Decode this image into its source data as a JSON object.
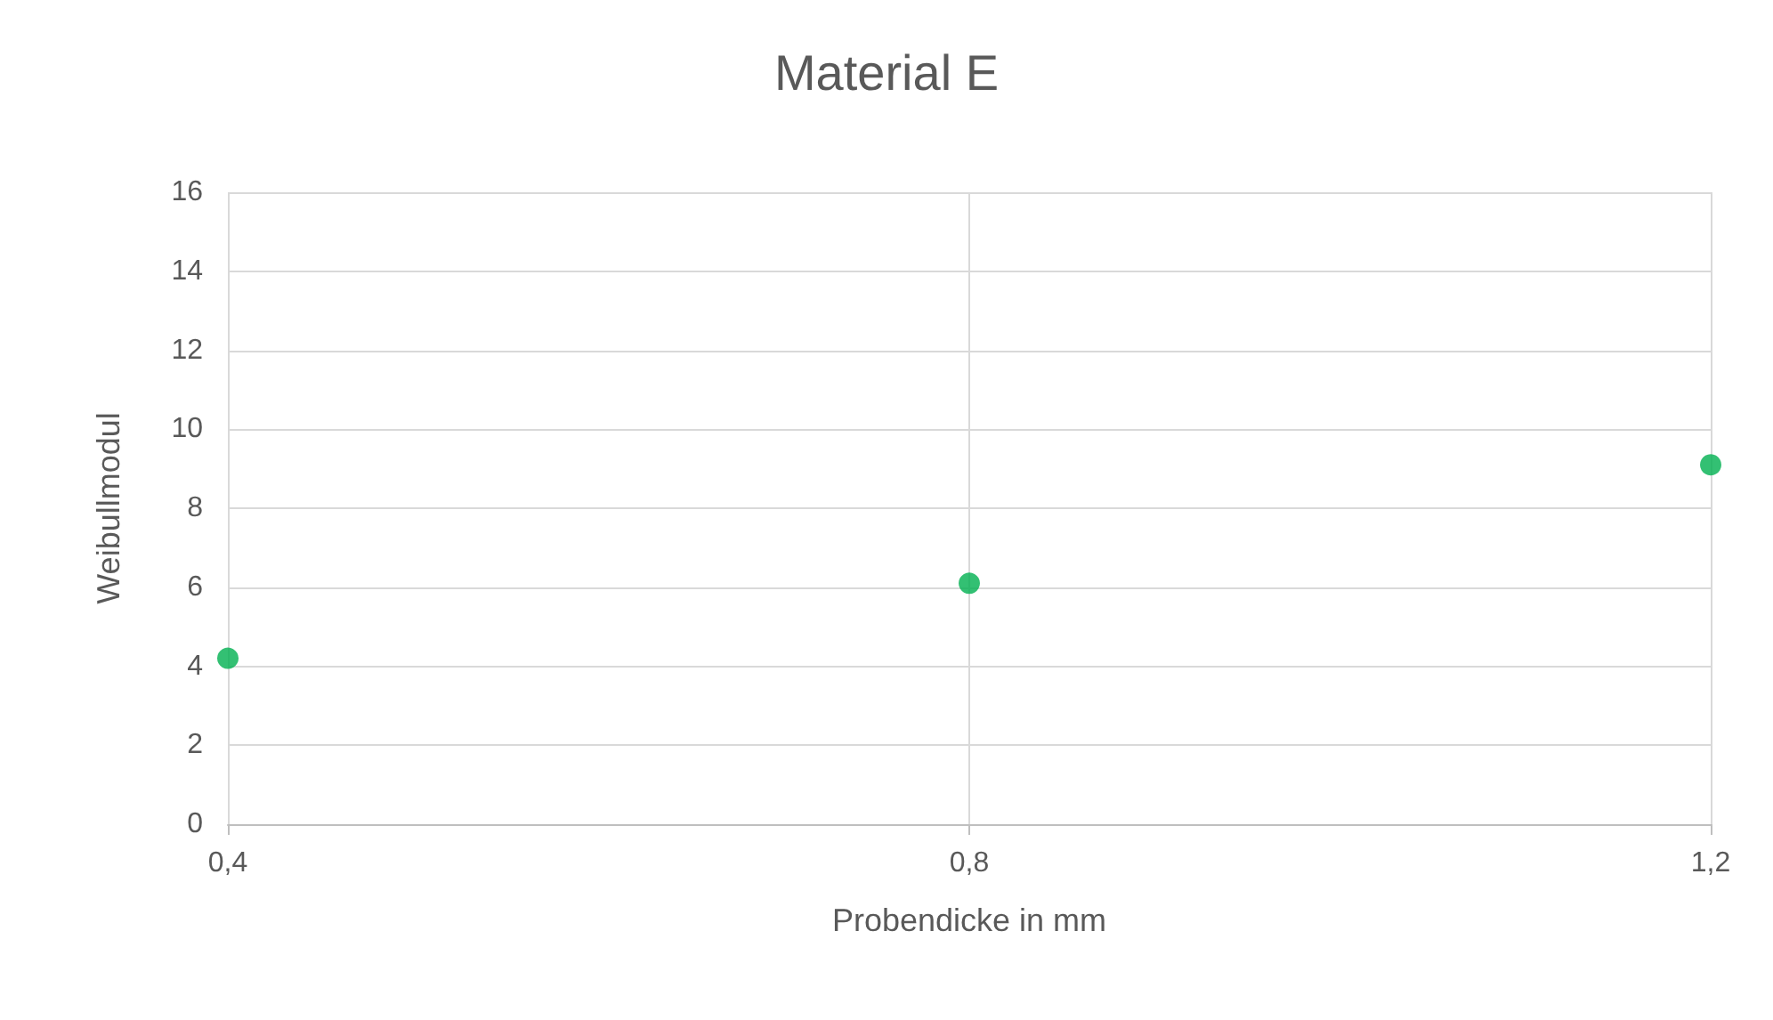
{
  "chart_data": {
    "type": "scatter",
    "title": "Material E",
    "xlabel": "Probendicke in mm",
    "ylabel": "Weibullmodul",
    "x": [
      0.4,
      0.8,
      1.2
    ],
    "series": [
      {
        "color": "#00b050",
        "values": [
          4.2,
          6.1,
          9.1
        ]
      }
    ],
    "xlim": [
      0.4,
      1.2
    ],
    "xticks": [
      {
        "value": 0.4,
        "label": "0,4"
      },
      {
        "value": 0.8,
        "label": "0,8"
      },
      {
        "value": 1.2,
        "label": "1,2"
      }
    ],
    "ylim": [
      0,
      16
    ],
    "yticks": [
      0,
      2,
      4,
      6,
      8,
      10,
      12,
      14,
      16
    ],
    "grid": true,
    "marker": "circle"
  }
}
